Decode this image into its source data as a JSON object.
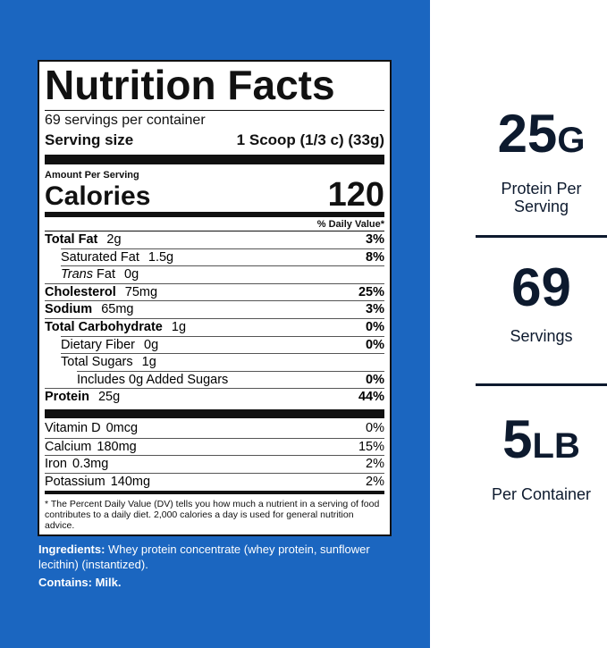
{
  "label": {
    "title": "Nutrition Facts",
    "servings": "69 servings per container",
    "serving_size_label": "Serving size",
    "serving_size": "1 Scoop (1/3 c) (33g)",
    "amount_per_serving": "Amount Per Serving",
    "calories_label": "Calories",
    "calories": "120",
    "daily_value_header": "% Daily Value*",
    "nutrients": [
      {
        "name": "Total Fat",
        "amount": "2g",
        "dv": "3%"
      },
      {
        "name": "Saturated Fat",
        "amount": "1.5g",
        "dv": "8%"
      },
      {
        "name_italic": "Trans",
        "name": "Fat",
        "amount": "0g"
      },
      {
        "name": "Cholesterol",
        "amount": "75mg",
        "dv": "25%"
      },
      {
        "name": "Sodium",
        "amount": "65mg",
        "dv": "3%"
      },
      {
        "name": "Total Carbohydrate",
        "amount": "1g",
        "dv": "0%"
      },
      {
        "name": "Dietary Fiber",
        "amount": "0g",
        "dv": "0%"
      },
      {
        "name": "Total Sugars",
        "amount": "1g"
      },
      {
        "name": "Includes 0g Added Sugars",
        "dv": "0%"
      },
      {
        "name": "Protein",
        "amount": "25g",
        "dv": "44%"
      }
    ],
    "vitamins": [
      {
        "name": "Vitamin D",
        "amount": "0mcg",
        "dv": "0%"
      },
      {
        "name": "Calcium",
        "amount": "180mg",
        "dv": "15%"
      },
      {
        "name": "Iron",
        "amount": "0.3mg",
        "dv": "2%"
      },
      {
        "name": "Potassium",
        "amount": "140mg",
        "dv": "2%"
      }
    ],
    "footnote": "* The Percent Daily Value (DV) tells you how much a nutrient in a serving of food contributes to a daily diet. 2,000 calories a day is used for general nutrition advice."
  },
  "ingredients_label": "Ingredients:",
  "ingredients": "Whey protein concentrate (whey protein, sunflower lecithin) (instantized).",
  "contains_label": "Contains:",
  "contains": "Milk.",
  "highlights": [
    {
      "value": "25",
      "unit": "G",
      "label": "Protein Per Serving"
    },
    {
      "value": "69",
      "label": "Servings"
    },
    {
      "value": "5",
      "unit": "LB",
      "label": "Per Container"
    }
  ]
}
